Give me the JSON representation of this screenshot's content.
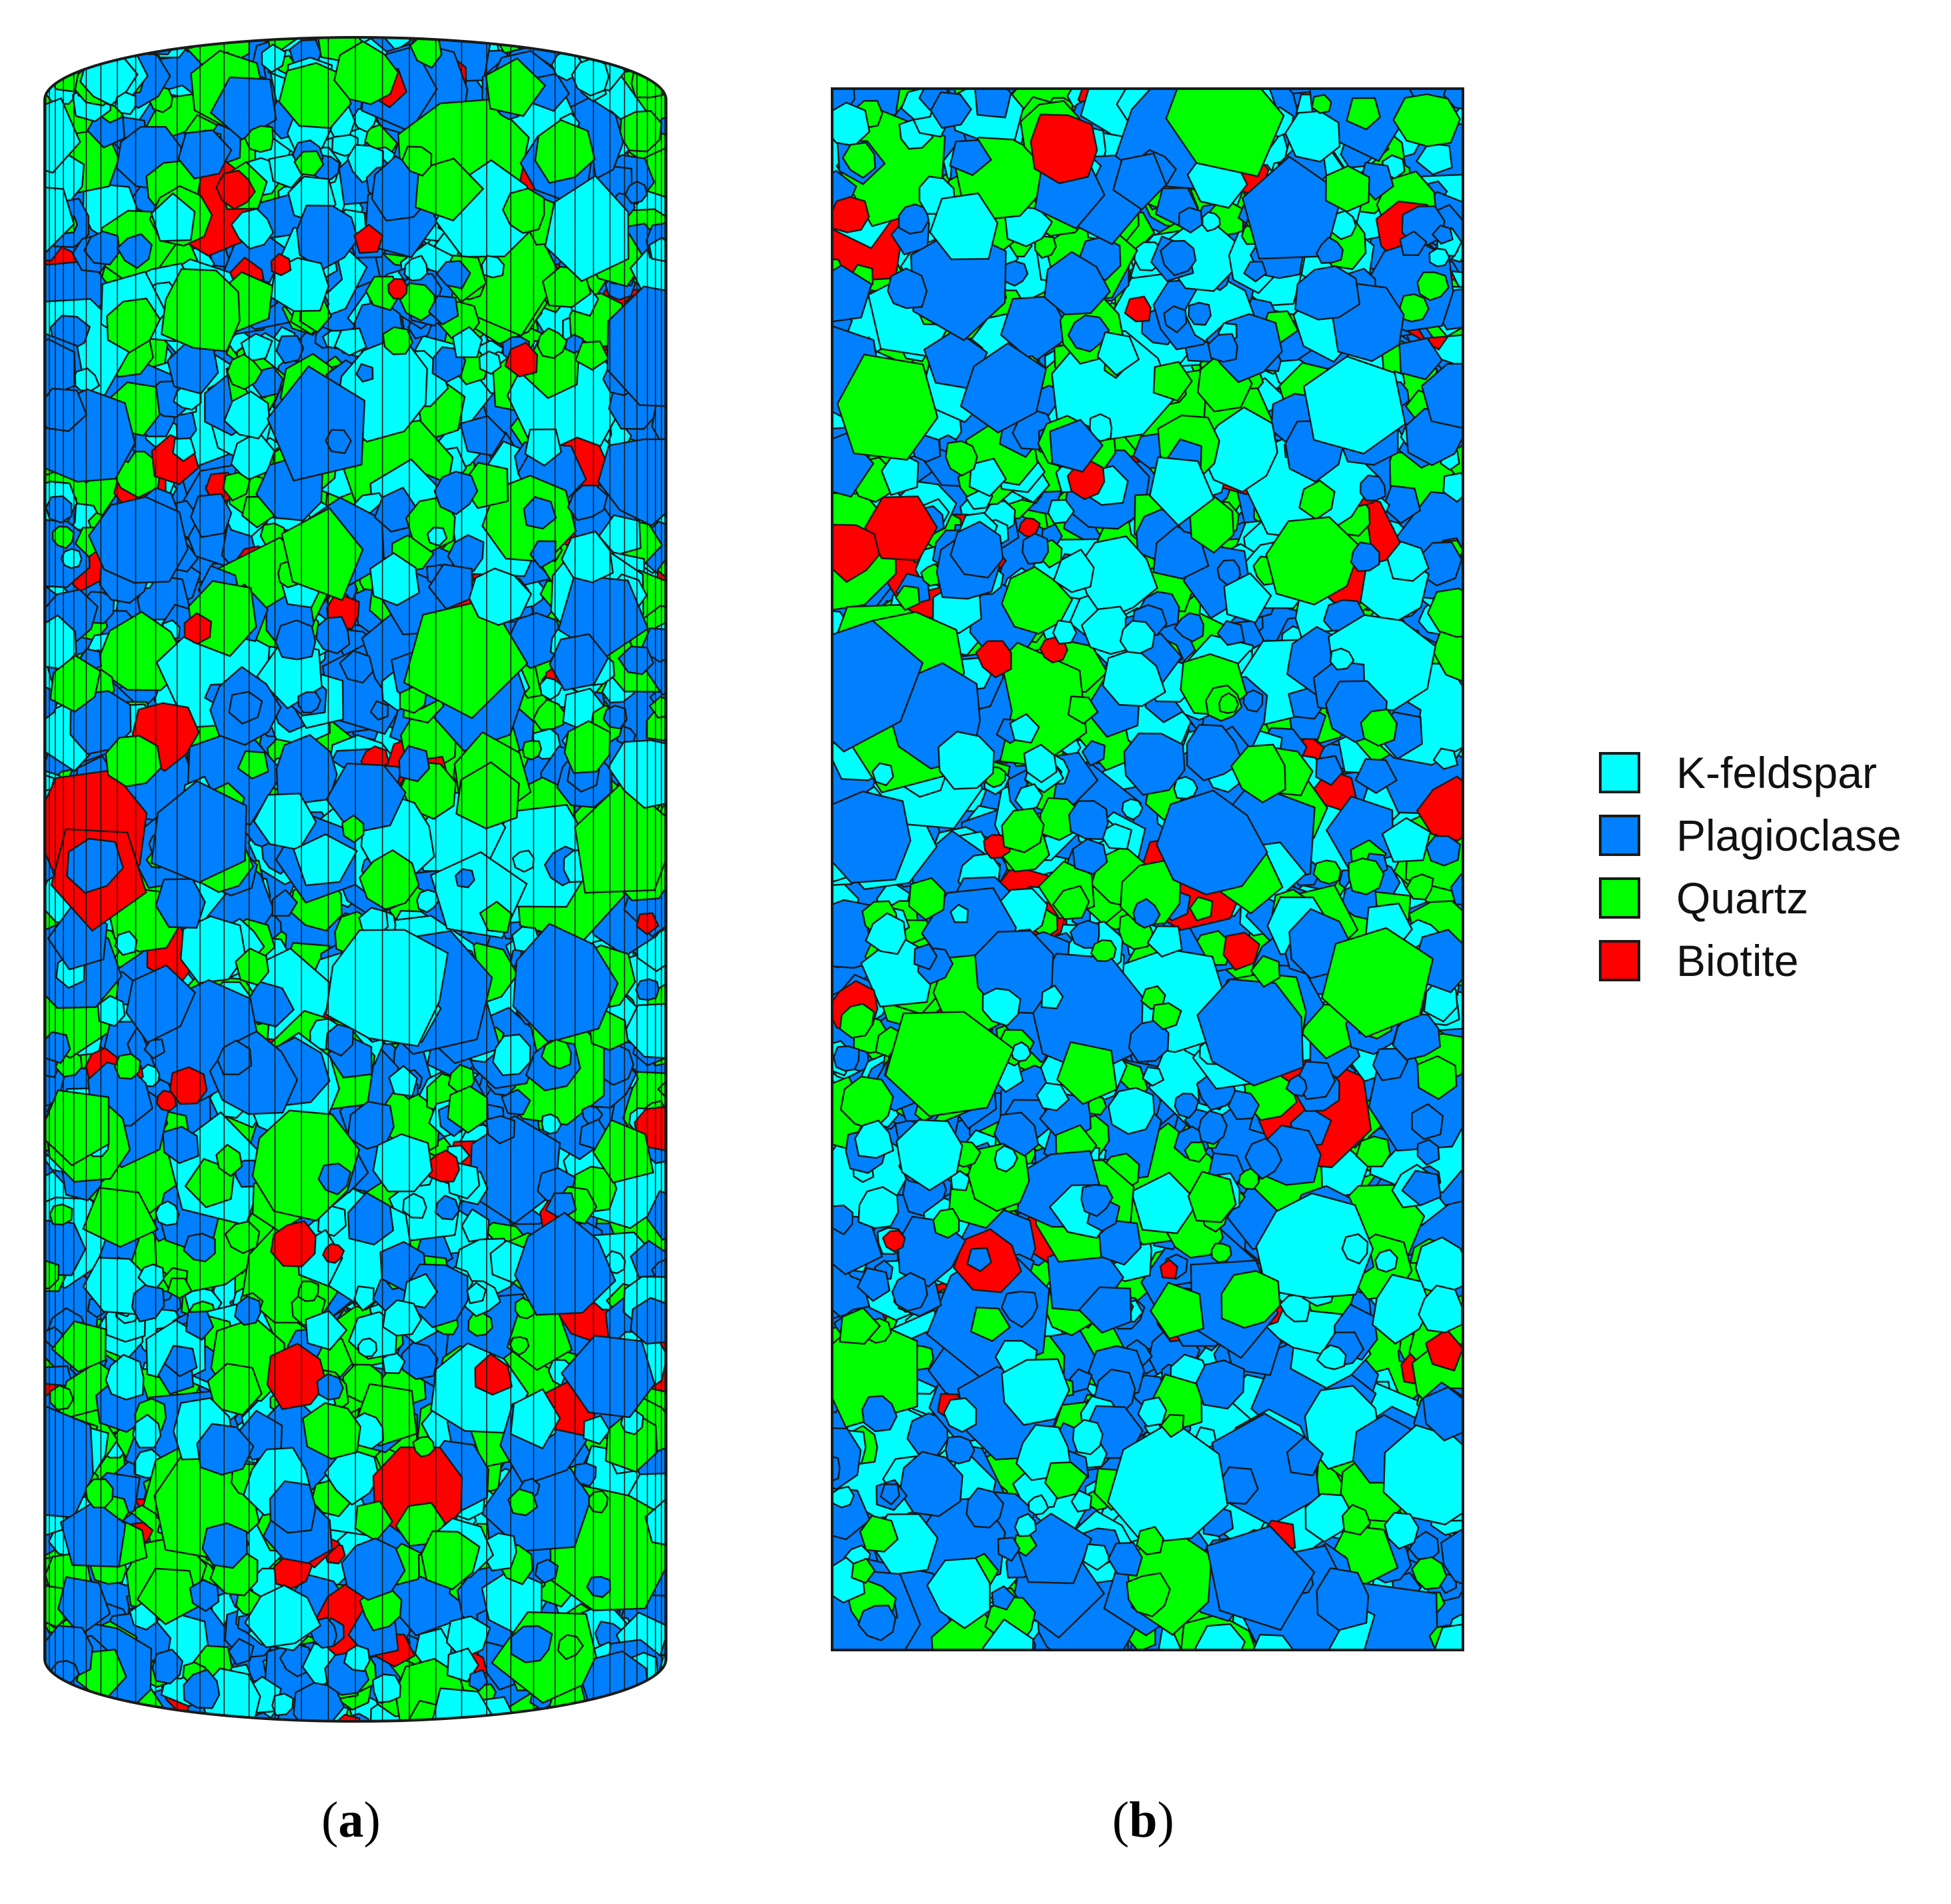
{
  "legend": {
    "items": [
      {
        "label": "K-feldspar",
        "color": "#00ffff"
      },
      {
        "label": "Plagioclase",
        "color": "#0080ff"
      },
      {
        "label": "Quartz",
        "color": "#00ff00"
      },
      {
        "label": "Biotite",
        "color": "#ff0000"
      }
    ]
  },
  "panels": {
    "a": {
      "caption_open": "(",
      "caption_letter": "a",
      "caption_close": ")",
      "shape": "cylinder"
    },
    "b": {
      "caption_open": "(",
      "caption_letter": "b",
      "caption_close": ")",
      "shape": "rectangle"
    }
  },
  "colors": {
    "grain_boundary": "#1a1a1a",
    "background": "#ffffff"
  }
}
